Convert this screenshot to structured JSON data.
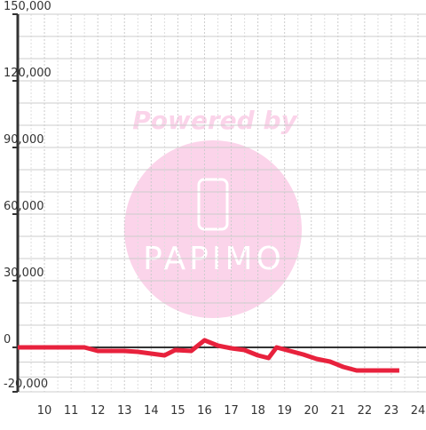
{
  "chart_data": {
    "type": "line",
    "watermark": {
      "title": "Powered by",
      "logo": "PAPIMO"
    },
    "xlim": [
      9,
      24.3
    ],
    "xticks": [
      10,
      11,
      12,
      13,
      14,
      15,
      16,
      17,
      18,
      19,
      20,
      21,
      22,
      23,
      24
    ],
    "ylim": [
      -20000,
      150000
    ],
    "yticks": [
      {
        "value": -20000,
        "label": "-20,000"
      },
      0,
      {
        "value": 30000,
        "label": "30,000"
      },
      {
        "value": 60000,
        "label": "60,000"
      },
      {
        "value": 90000,
        "label": "90,000"
      },
      {
        "value": 120000,
        "label": "120,000"
      },
      {
        "value": 150000,
        "label": "150,000"
      }
    ],
    "grid": true,
    "series": [
      {
        "color": "#e8223d",
        "x": [
          9,
          11.5,
          12,
          13,
          13.5,
          14,
          14.5,
          14.9,
          15.5,
          16,
          16.5,
          17,
          17.5,
          18,
          18.4,
          18.7,
          19.2,
          19.7,
          20.2,
          20.7,
          21.2,
          21.7,
          23.3
        ],
        "values": [
          0,
          0,
          -1600,
          -1600,
          -2000,
          -2800,
          -3600,
          -1200,
          -1600,
          3200,
          800,
          -400,
          -1200,
          -3600,
          -4800,
          0,
          -1600,
          -3200,
          -5200,
          -6400,
          -8800,
          -10400,
          -10400
        ]
      }
    ]
  }
}
